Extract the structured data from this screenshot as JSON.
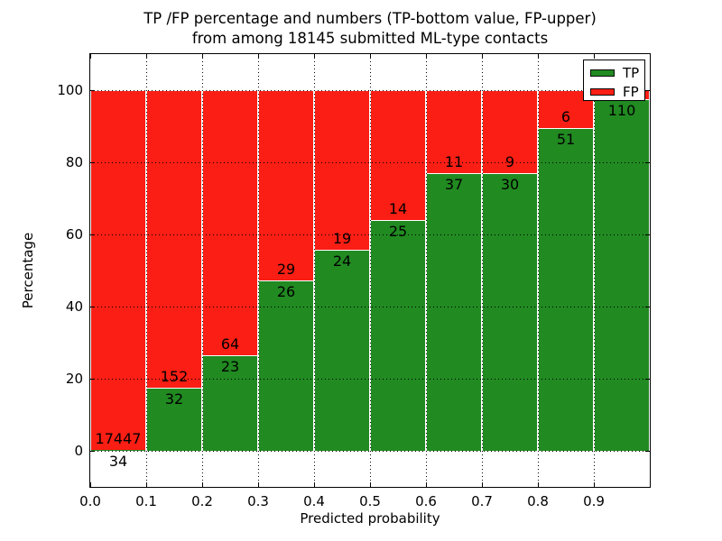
{
  "figure": {
    "title_line1": "TP /FP percentage and numbers (TP-bottom value, FP-upper)",
    "title_line2": "from among 18145 submitted ML-type contacts"
  },
  "axes": {
    "xlabel": "Predicted probability",
    "ylabel": "Percentage",
    "x_tick_labels": [
      "0.0",
      "0.1",
      "0.2",
      "0.3",
      "0.4",
      "0.5",
      "0.6",
      "0.7",
      "0.8",
      "0.9"
    ],
    "y_tick_labels": [
      0,
      20,
      40,
      60,
      80,
      100
    ],
    "xlim": [
      0.0,
      1.0
    ],
    "ylim": [
      -10,
      110
    ],
    "grid_style": "dotted"
  },
  "legend": {
    "position": "upper-right",
    "items": [
      {
        "label": "TP",
        "color": "#218a21"
      },
      {
        "label": "FP",
        "color": "#fa1e14"
      }
    ]
  },
  "colors": {
    "tp": "#218a21",
    "fp": "#fa1e14",
    "bar_edge": "#ffffff",
    "grid": "#000000"
  },
  "chart_data": {
    "type": "bar",
    "variant": "stacked-percentage",
    "title": "TP /FP percentage and numbers (TP-bottom value, FP-upper) from among 18145 submitted ML-type contacts",
    "xlabel": "Predicted probability",
    "ylabel": "Percentage",
    "bin_width": 0.1,
    "categories": [
      "0.0-0.1",
      "0.1-0.2",
      "0.2-0.3",
      "0.3-0.4",
      "0.4-0.5",
      "0.5-0.6",
      "0.6-0.7",
      "0.7-0.8",
      "0.8-0.9",
      "0.9-1.0"
    ],
    "series": [
      {
        "name": "TP",
        "color": "#218a21",
        "counts": [
          34,
          32,
          23,
          26,
          24,
          25,
          37,
          30,
          51,
          110
        ]
      },
      {
        "name": "FP",
        "color": "#fa1e14",
        "counts": [
          17447,
          152,
          64,
          29,
          19,
          14,
          11,
          9,
          6,
          null
        ]
      }
    ],
    "tp_percent": [
      0.2,
      17.4,
      26.4,
      47.3,
      55.8,
      64.1,
      77.1,
      76.9,
      89.5,
      97.4
    ],
    "legend_entries": [
      "TP",
      "FP"
    ]
  }
}
